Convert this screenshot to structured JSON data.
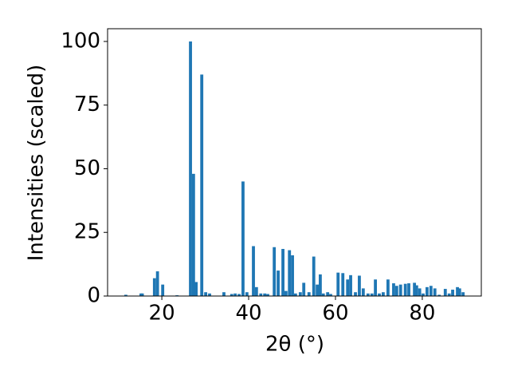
{
  "chart_data": {
    "type": "bar",
    "x_label": "2θ (°)",
    "y_label": "Intensities (scaled)",
    "color": "#1f77b4",
    "x": [
      11.7,
      15.2,
      15.5,
      18.3,
      19.0,
      20.2,
      23.5,
      26.6,
      27.3,
      27.9,
      29.2,
      30.1,
      31.0,
      34.3,
      36.1,
      36.9,
      37.8,
      38.7,
      39.6,
      41.1,
      41.8,
      42.8,
      43.7,
      44.4,
      45.9,
      46.8,
      47.9,
      48.6,
      49.4,
      50.1,
      50.8,
      51.9,
      52.7,
      53.9,
      55.0,
      55.8,
      56.5,
      57.2,
      58.2,
      58.9,
      60.6,
      61.7,
      62.8,
      63.5,
      64.6,
      65.5,
      66.4,
      67.5,
      68.4,
      69.2,
      70.1,
      71.0,
      72.1,
      73.4,
      74.1,
      75.0,
      76.1,
      76.9,
      78.2,
      78.7,
      79.4,
      80.2,
      81.1,
      82.0,
      82.9,
      83.9,
      85.3,
      86.2,
      87.0,
      88.1,
      88.6,
      89.4
    ],
    "values": [
      0.5,
      1,
      1,
      7,
      9.7,
      4.5,
      0.3,
      100,
      48,
      5.5,
      87,
      1.5,
      1,
      1.5,
      0.8,
      1,
      0.8,
      45,
      1.5,
      19.6,
      3.5,
      1,
      1,
      0.8,
      19.2,
      10,
      18.5,
      2,
      18,
      16,
      1,
      1.5,
      5.2,
      1.5,
      15.5,
      4.5,
      8.5,
      1,
      1.5,
      0.8,
      9.2,
      9,
      6.5,
      8.2,
      1.5,
      8,
      3,
      1,
      1,
      6.5,
      1,
      1.5,
      6.5,
      5,
      4,
      4.5,
      4.8,
      5,
      5.2,
      4.2,
      3,
      1,
      3.5,
      4,
      3,
      0.5,
      2.8,
      1,
      2.5,
      3.5,
      3,
      1.5
    ],
    "xlim": [
      7.5,
      93.6
    ],
    "xticks": [
      20,
      40,
      60,
      80
    ],
    "ylim": [
      0,
      105
    ],
    "yticks": [
      0,
      25,
      50,
      75,
      100
    ]
  }
}
